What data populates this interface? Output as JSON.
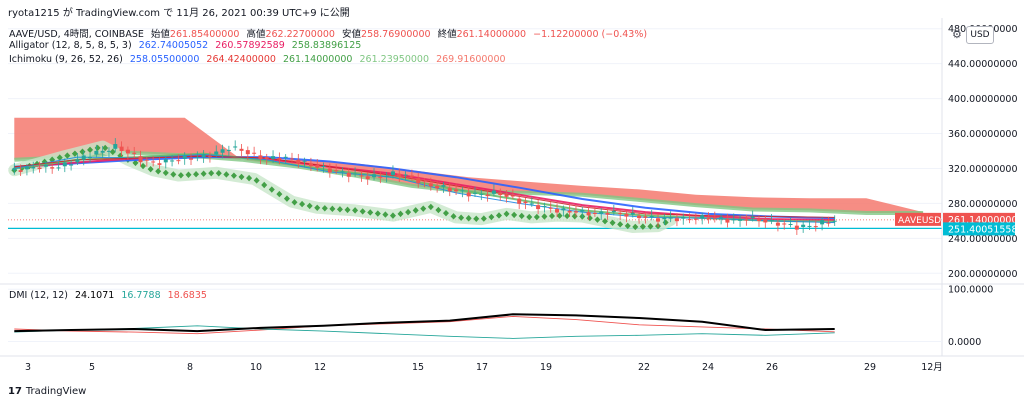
{
  "header": {
    "published_by": "ryota1215 が TradingView.com で 11月 26, 2021 00:39 UTC+9 に公開"
  },
  "legend": {
    "symbol": "AAVE/USD, 4時間, COINBASE",
    "ohlc": [
      {
        "label": "始値",
        "value": "261.85400000"
      },
      {
        "label": "高値",
        "value": "262.22700000"
      },
      {
        "label": "安値",
        "value": "258.76900000"
      },
      {
        "label": "終値",
        "value": "261.14000000"
      }
    ],
    "change": "−1.12200000 (−0.43%)",
    "alligator_label": "Alligator (12, 8, 5, 8, 5, 3)",
    "alligator_values": [
      "262.74005052",
      "260.57892589",
      "258.83896125"
    ],
    "ichimoku_label": "Ichimoku (9, 26, 52, 26)",
    "ichimoku_values": [
      "258.05500000",
      "264.42400000",
      "261.14000000",
      "261.23950000",
      "269.91600000"
    ],
    "dmi_label": "DMI (12, 12)",
    "dmi_values": [
      "24.1071",
      "16.7788",
      "18.6835"
    ]
  },
  "currency_button": "USD",
  "price_tags": {
    "symbol_tag": "AAVEUSD",
    "last_price": "261.14000000",
    "line_price": "251.40051558"
  },
  "footer": {
    "brand": "TradingView"
  },
  "colors": {
    "up": "#26a69a",
    "down": "#ef5350",
    "kumo": "#f4796e",
    "alligator_jaw": "#2962ff",
    "alligator_teeth": "#e91e63",
    "alligator_lips": "#66bb6a",
    "ichimoku_lagging": "#43a047",
    "hline": "#00bcd4",
    "dmi_adx": "#000000",
    "dmi_plus": "#26a69a",
    "dmi_minus": "#ef5350"
  },
  "chart_data": {
    "type": "line",
    "x_ticks": [
      "3",
      "5",
      "8",
      "10",
      "12",
      "15",
      "17",
      "19",
      "22",
      "24",
      "26",
      "29",
      "12月"
    ],
    "price_axis": {
      "ticks": [
        "480.00000000",
        "440.00000000",
        "400.00000000",
        "360.00000000",
        "320.00000000",
        "280.00000000",
        "240.00000000",
        "200.00000000"
      ],
      "ylim": [
        190,
        490
      ]
    },
    "dmi_axis": {
      "ticks": [
        "100.0000",
        "0.0000"
      ],
      "ylim": [
        -20,
        110
      ]
    },
    "series": [
      {
        "name": "Price",
        "x": [
          1,
          3,
          5,
          7,
          9,
          11,
          13,
          15,
          17,
          19,
          21,
          23,
          25,
          27,
          29,
          31,
          33,
          35,
          37,
          39,
          41,
          43,
          45,
          47,
          49,
          51,
          53,
          55,
          57,
          59,
          61,
          63,
          65,
          67,
          69,
          71,
          73,
          75,
          77,
          79,
          81,
          83,
          85,
          87,
          89,
          91,
          93,
          95,
          97,
          99,
          101,
          103,
          105,
          107,
          109,
          111,
          113,
          115,
          117,
          119,
          121,
          123,
          125,
          127,
          129,
          131
        ],
        "values": [
          318,
          320,
          322,
          321,
          324,
          330,
          336,
          340,
          345,
          338,
          330,
          326,
          328,
          331,
          332,
          334,
          338,
          344,
          341,
          335,
          331,
          333,
          330,
          326,
          322,
          318,
          315,
          312,
          310,
          311,
          314,
          312,
          306,
          300,
          298,
          294,
          291,
          290,
          292,
          289,
          282,
          278,
          275,
          272,
          271,
          270,
          268,
          270,
          268,
          266,
          264,
          262,
          263,
          262,
          263,
          264,
          262,
          260,
          263,
          261,
          258,
          256,
          253,
          254,
          258,
          261
        ]
      },
      {
        "name": "Tenkan",
        "x": [
          1,
          11,
          21,
          31,
          41,
          51,
          61,
          71,
          81,
          91,
          101,
          111,
          121,
          131
        ],
        "values": [
          320,
          333,
          332,
          336,
          330,
          316,
          310,
          292,
          280,
          270,
          264,
          263,
          260,
          258
        ]
      },
      {
        "name": "Kijun",
        "x": [
          1,
          11,
          21,
          31,
          41,
          51,
          61,
          71,
          81,
          91,
          101,
          111,
          121,
          131
        ],
        "values": [
          322,
          330,
          332,
          334,
          332,
          322,
          312,
          300,
          288,
          276,
          268,
          266,
          265,
          264
        ]
      },
      {
        "name": "Lagging",
        "x": [
          1,
          9,
          15,
          19,
          23,
          27,
          33,
          39,
          45,
          49,
          55,
          61,
          67,
          71,
          75,
          79,
          83,
          87,
          91,
          95,
          99,
          103,
          105
        ],
        "values": [
          318,
          334,
          345,
          330,
          318,
          312,
          315,
          308,
          282,
          275,
          272,
          266,
          276,
          264,
          262,
          268,
          264,
          266,
          265,
          259,
          253,
          254,
          261
        ]
      },
      {
        "name": "Senkou A",
        "x": [
          1,
          10,
          19,
          28,
          37,
          46,
          55,
          64,
          73,
          82,
          91,
          100,
          109,
          118,
          127,
          136,
          145
        ],
        "values": [
          330,
          333,
          338,
          335,
          330,
          322,
          312,
          300,
          293,
          292,
          290,
          284,
          278,
          273,
          272,
          269,
          269
        ]
      },
      {
        "name": "Senkou B",
        "x": [
          1,
          10,
          19,
          28,
          37,
          46,
          55,
          64,
          73,
          82,
          91,
          100,
          109,
          118,
          127,
          136,
          145
        ],
        "values": [
          378,
          378,
          378,
          378,
          330,
          330,
          326,
          318,
          310,
          305,
          300,
          296,
          290,
          287,
          286,
          286,
          270
        ]
      },
      {
        "name": "Jaw",
        "x": [
          1,
          11,
          21,
          31,
          41,
          51,
          61,
          71,
          81,
          91,
          101,
          111,
          121,
          131
        ],
        "values": [
          322,
          326,
          330,
          333,
          333,
          328,
          320,
          310,
          298,
          285,
          275,
          268,
          265,
          263
        ]
      },
      {
        "name": "Teeth",
        "x": [
          1,
          11,
          21,
          31,
          41,
          51,
          61,
          71,
          81,
          91,
          101,
          111,
          121,
          131
        ],
        "values": [
          321,
          327,
          332,
          335,
          331,
          322,
          314,
          302,
          290,
          278,
          270,
          265,
          262,
          261
        ]
      },
      {
        "name": "Lips",
        "x": [
          1,
          11,
          21,
          31,
          41,
          51,
          61,
          71,
          81,
          91,
          101,
          111,
          121,
          131
        ],
        "values": [
          320,
          330,
          333,
          337,
          329,
          318,
          310,
          296,
          284,
          272,
          266,
          263,
          260,
          259
        ]
      },
      {
        "name": "ADX",
        "x": [
          1,
          10,
          20,
          30,
          40,
          50,
          60,
          70,
          80,
          90,
          100,
          110,
          120,
          131
        ],
        "values": [
          20,
          22,
          24,
          20,
          26,
          30,
          36,
          40,
          52,
          50,
          45,
          38,
          22,
          24
        ]
      },
      {
        "name": "+DI",
        "x": [
          1,
          10,
          20,
          30,
          40,
          50,
          60,
          70,
          80,
          90,
          100,
          110,
          120,
          131
        ],
        "values": [
          18,
          22,
          25,
          30,
          24,
          20,
          15,
          10,
          6,
          10,
          12,
          15,
          12,
          16.8
        ]
      },
      {
        "name": "-DI",
        "x": [
          1,
          10,
          20,
          30,
          40,
          50,
          60,
          70,
          80,
          90,
          100,
          110,
          120,
          131
        ],
        "values": [
          24,
          20,
          18,
          15,
          22,
          30,
          34,
          38,
          48,
          42,
          32,
          28,
          24,
          18.7
        ]
      }
    ],
    "horizontal_line": 251.40051558
  }
}
